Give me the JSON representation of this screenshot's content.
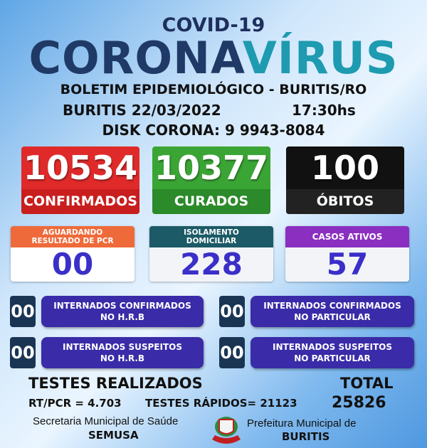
{
  "header": {
    "covid": "COVID-19",
    "corona": "CORONA",
    "virus": "VÍRUS",
    "bulletin": "BOLETIM EPIDEMIOLÓGICO - BURITIS/RO",
    "date": "BURITIS 22/03/2022",
    "time": "17:30hs",
    "disk": "DISK CORONA: 9 9943-8084"
  },
  "main_stats": [
    {
      "value": "10534",
      "label": "CONFIRMADOS",
      "color": "#e02a2a"
    },
    {
      "value": "10377",
      "label": "CURADOS",
      "color": "#3aa535"
    },
    {
      "value": "100",
      "label": "ÓBITOS",
      "color": "#111111"
    }
  ],
  "secondary_stats": [
    {
      "label": "AGUARDANDO RESULTADO DE PCR",
      "value": "00",
      "color": "#ef6a3a"
    },
    {
      "label": "ISOLAMENTO DOMICILIAR",
      "value": "228",
      "color": "#1b5a66"
    },
    {
      "label": "CASOS ATIVOS",
      "value": "57",
      "color": "#8a2fc0"
    }
  ],
  "hospital": [
    {
      "value": "00",
      "label_1": "INTERNADOS CONFIRMADOS",
      "label_2": "NO H.R.B"
    },
    {
      "value": "00",
      "label_1": "INTERNADOS CONFIRMADOS",
      "label_2": "NO PARTICULAR"
    },
    {
      "value": "00",
      "label_1": "INTERNADOS SUSPEITOS",
      "label_2": "NO H.R.B"
    },
    {
      "value": "00",
      "label_1": "INTERNADOS SUSPEITOS",
      "label_2": "NO PARTICULAR"
    }
  ],
  "tests": {
    "title": "TESTES REALIZADOS",
    "total_label": "TOTAL",
    "rtpcr": "RT/PCR = 4.703",
    "rapid": "TESTES RÁPIDOS= 21123",
    "total": "25826"
  },
  "footer": {
    "secretaria": "Secretaria Municipal de Saúde",
    "semusa": "SEMUSA",
    "prefeitura": "Prefeitura Municipal de",
    "buritis": "BURITIS",
    "crest": "Brasão de Buritis"
  }
}
